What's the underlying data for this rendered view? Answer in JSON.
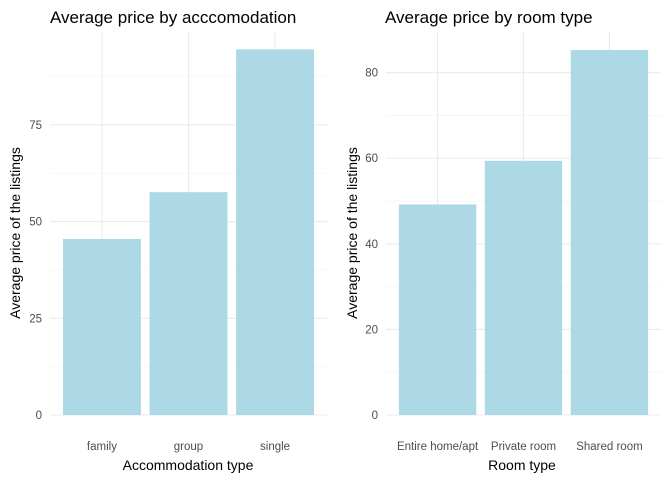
{
  "chart_data": [
    {
      "type": "bar",
      "title": "Average price by acccomodation",
      "xlabel": "Accommodation type",
      "ylabel": "Average price of the listings",
      "categories": [
        "family",
        "group",
        "single"
      ],
      "values": [
        45.5,
        57.6,
        94.5
      ],
      "ylim": [
        0,
        99
      ],
      "yticks": [
        0,
        25,
        50,
        75
      ],
      "ytick_labels": [
        "0",
        "25",
        "50",
        "75"
      ],
      "bar_color": "#add8e6",
      "grid": true
    },
    {
      "type": "bar",
      "title": "Average price by room type",
      "xlabel": "Room type",
      "ylabel": "Average price of the listings",
      "categories": [
        "Entire home/apt",
        "Private room",
        "Shared room"
      ],
      "values": [
        49.2,
        59.4,
        85.3
      ],
      "ylim": [
        0,
        89.5
      ],
      "yticks": [
        0,
        20,
        40,
        60,
        80
      ],
      "ytick_labels": [
        "0",
        "20",
        "40",
        "60",
        "80"
      ],
      "bar_color": "#add8e6",
      "grid": true
    }
  ]
}
